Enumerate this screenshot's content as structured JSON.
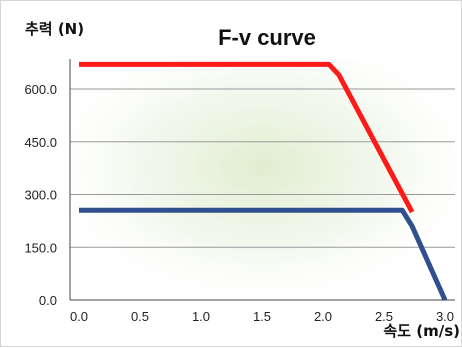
{
  "chart_data": {
    "type": "line",
    "title": "F-v curve",
    "ylabel": "추력 (N)",
    "xlabel": "속도 (m/s)",
    "xlim": [
      0,
      3
    ],
    "ylim": [
      0,
      700
    ],
    "x_ticks": [
      "0.0",
      "0.5",
      "1.0",
      "1.5",
      "2.0",
      "2.5",
      "3.0"
    ],
    "y_ticks": [
      "0.0",
      "150.0",
      "300.0",
      "450.0",
      "600.0"
    ],
    "grid": "horizontal",
    "legend": "none",
    "series": [
      {
        "color": "#ff1a1a",
        "x": [
          0.0,
          2.05,
          2.13,
          2.73
        ],
        "y": [
          670,
          670,
          640,
          250
        ]
      },
      {
        "color": "#2f4f8f",
        "x": [
          0.0,
          2.65,
          2.73,
          3.0
        ],
        "y": [
          255,
          255,
          210,
          0
        ]
      }
    ]
  }
}
